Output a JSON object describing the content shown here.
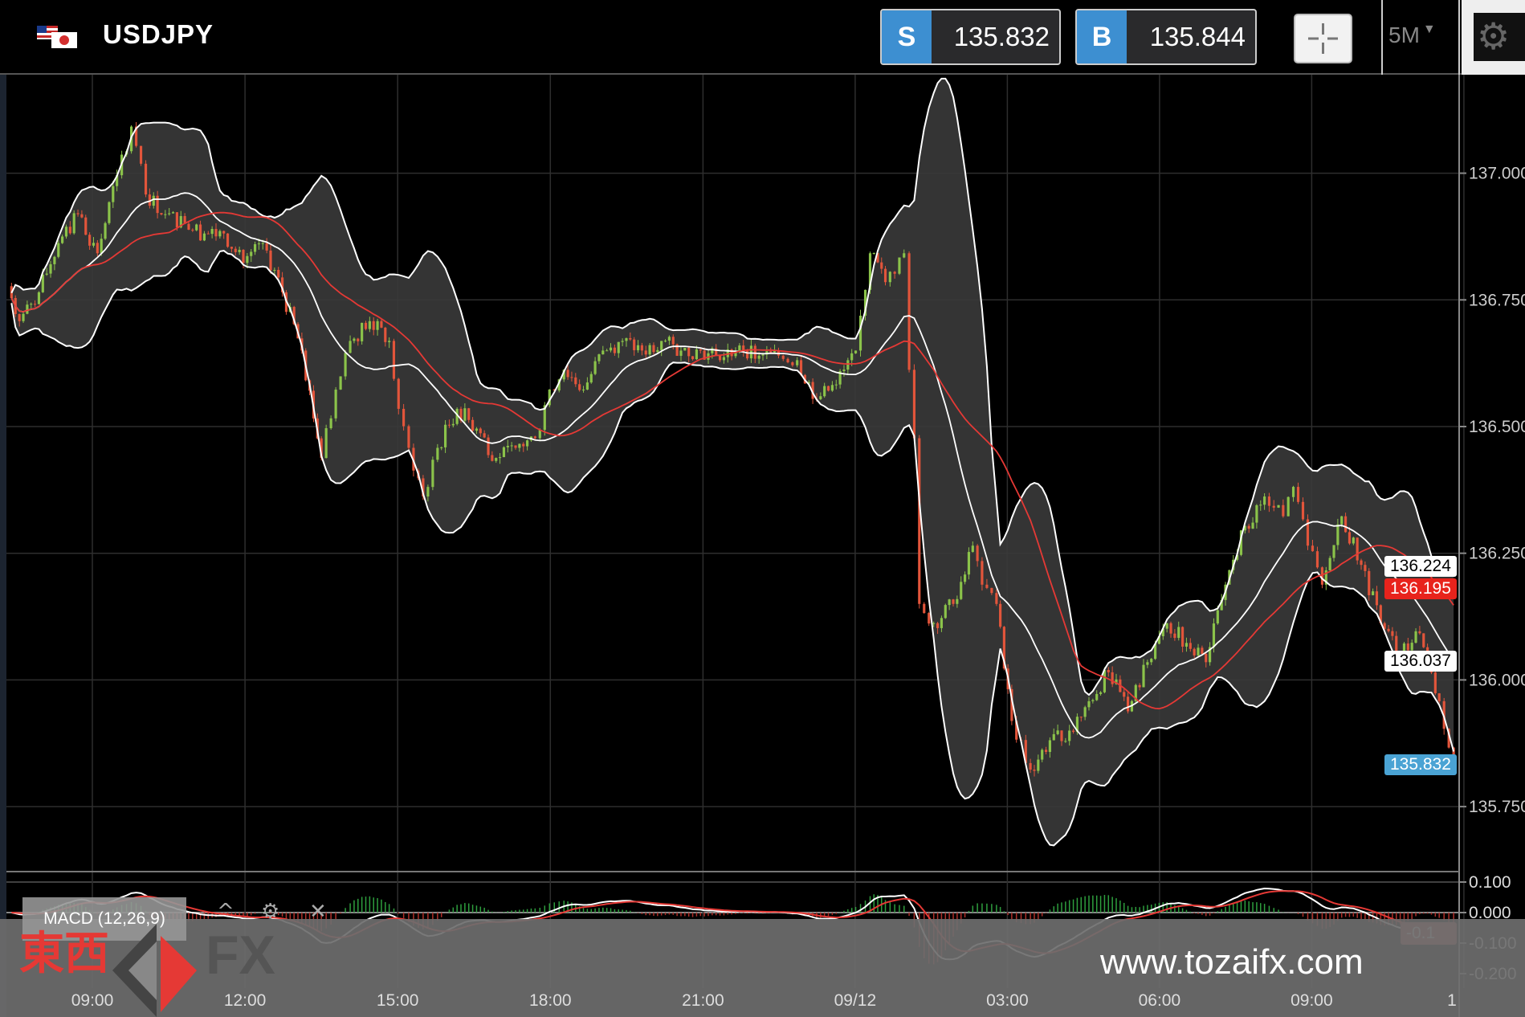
{
  "header": {
    "symbol": "USDJPY",
    "flag_icon": "us-jp-flag-icon",
    "sell_label": "S",
    "sell_price": "135.832",
    "buy_label": "B",
    "buy_price": "135.844",
    "crosshair_icon": "crosshair-icon",
    "timeframe": "5M",
    "settings_icon": "gear-icon"
  },
  "price_tags": {
    "upper_band": "136.224",
    "moving_average": "136.195",
    "middle_band": "136.037",
    "last_price": "135.832"
  },
  "macd": {
    "label": "MACD (12,26,9)",
    "tag": "-0.1",
    "ticks": [
      "0.100",
      "0.000",
      "-0.100",
      "-0.200"
    ]
  },
  "watermark": {
    "brand_cn": "東西",
    "brand_fx": "FX",
    "website": "www.tozaifx.com"
  },
  "colors": {
    "up": "#8bc34a",
    "down": "#e2553b",
    "band_fill": "#3a3a3a",
    "ma": "#e53935",
    "accent": "#3d8fd1"
  },
  "chart_data": {
    "type": "candlestick",
    "interval": "5M",
    "indicators": [
      "Bollinger Bands",
      "Moving Average",
      "MACD (12,26,9)"
    ],
    "y_ticks": [
      "137.000",
      "136.750",
      "136.500",
      "136.250",
      "136.000",
      "135.750"
    ],
    "ylim": [
      135.62,
      137.18
    ],
    "x_ticks": [
      "09:00",
      "12:00",
      "15:00",
      "18:00",
      "21:00",
      "09/12",
      "03:00",
      "06:00",
      "09:00",
      "1"
    ],
    "grid": true,
    "close_path": [
      [
        "07:20",
        136.777
      ],
      [
        "07:34",
        136.708
      ],
      [
        "07:57",
        136.765
      ],
      [
        "08:20",
        136.862
      ],
      [
        "08:43",
        136.919
      ],
      [
        "09:06",
        136.842
      ],
      [
        "09:29",
        136.996
      ],
      [
        "09:46",
        137.092
      ],
      [
        "10:03",
        136.958
      ],
      [
        "10:26",
        136.919
      ],
      [
        "10:49",
        136.9
      ],
      [
        "11:12",
        136.881
      ],
      [
        "11:35",
        136.881
      ],
      [
        "11:58",
        136.823
      ],
      [
        "12:21",
        136.862
      ],
      [
        "12:44",
        136.765
      ],
      [
        "13:07",
        136.65
      ],
      [
        "13:30",
        136.438
      ],
      [
        "13:47",
        136.573
      ],
      [
        "14:04",
        136.669
      ],
      [
        "14:27",
        136.708
      ],
      [
        "14:50",
        136.669
      ],
      [
        "15:01",
        136.535
      ],
      [
        "15:13",
        136.458
      ],
      [
        "15:30",
        136.362
      ],
      [
        "15:47",
        136.458
      ],
      [
        "16:10",
        136.535
      ],
      [
        "16:33",
        136.496
      ],
      [
        "16:56",
        136.438
      ],
      [
        "17:19",
        136.458
      ],
      [
        "17:42",
        136.477
      ],
      [
        "17:59",
        136.573
      ],
      [
        "18:16",
        136.612
      ],
      [
        "18:39",
        136.573
      ],
      [
        "19:02",
        136.65
      ],
      [
        "19:25",
        136.669
      ],
      [
        "19:48",
        136.65
      ],
      [
        "20:11",
        136.669
      ],
      [
        "20:34",
        136.65
      ],
      [
        "20:57",
        136.65
      ],
      [
        "21:20",
        136.631
      ],
      [
        "21:43",
        136.66
      ],
      [
        "22:06",
        136.64
      ],
      [
        "22:29",
        136.64
      ],
      [
        "22:51",
        136.631
      ],
      [
        "23:14",
        136.554
      ],
      [
        "23:37",
        136.583
      ],
      [
        "00:00",
        136.65
      ],
      [
        "00:17",
        136.842
      ],
      [
        "00:35",
        136.785
      ],
      [
        "00:57",
        136.842
      ],
      [
        "01:03",
        136.612
      ],
      [
        "01:09",
        136.477
      ],
      [
        "01:15",
        136.15
      ],
      [
        "01:32",
        136.112
      ],
      [
        "01:55",
        136.15
      ],
      [
        "02:18",
        136.265
      ],
      [
        "02:29",
        136.188
      ],
      [
        "02:46",
        136.15
      ],
      [
        "03:04",
        135.919
      ],
      [
        "03:26",
        135.823
      ],
      [
        "03:49",
        135.881
      ],
      [
        "04:12",
        135.9
      ],
      [
        "04:35",
        135.958
      ],
      [
        "04:58",
        136.015
      ],
      [
        "05:21",
        135.938
      ],
      [
        "05:44",
        136.035
      ],
      [
        "06:07",
        136.112
      ],
      [
        "06:30",
        136.073
      ],
      [
        "06:53",
        136.035
      ],
      [
        "07:16",
        136.188
      ],
      [
        "07:39",
        136.304
      ],
      [
        "08:02",
        136.362
      ],
      [
        "08:24",
        136.323
      ],
      [
        "08:36",
        136.381
      ],
      [
        "08:53",
        136.265
      ],
      [
        "09:10",
        136.188
      ],
      [
        "09:33",
        136.323
      ],
      [
        "09:56",
        136.227
      ],
      [
        "10:19",
        136.112
      ],
      [
        "10:42",
        136.054
      ],
      [
        "11:05",
        136.092
      ],
      [
        "11:28",
        135.958
      ],
      [
        "11:45",
        135.832
      ]
    ]
  }
}
